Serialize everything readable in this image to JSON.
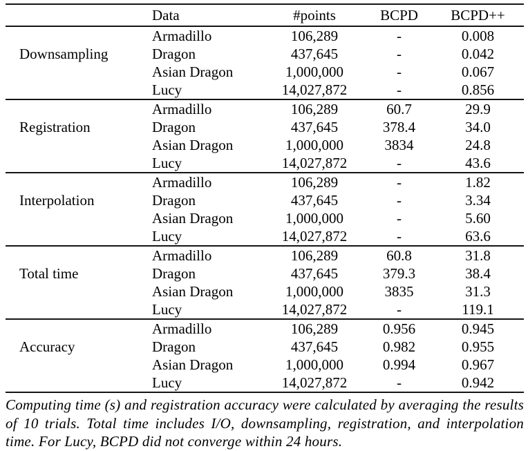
{
  "table": {
    "headers": {
      "group": "",
      "data": "Data",
      "points": "#points",
      "bcpd": "BCPD",
      "bcpdpp": "BCPD++"
    },
    "sections": [
      {
        "label": "Downsampling",
        "rows": [
          {
            "data": "Armadillo",
            "points": "106,289",
            "bcpd": "-",
            "bcpdpp": "0.008"
          },
          {
            "data": "Dragon",
            "points": "437,645",
            "bcpd": "-",
            "bcpdpp": "0.042"
          },
          {
            "data": "Asian Dragon",
            "points": "1,000,000",
            "bcpd": "-",
            "bcpdpp": "0.067"
          },
          {
            "data": "Lucy",
            "points": "14,027,872",
            "bcpd": "-",
            "bcpdpp": "0.856"
          }
        ]
      },
      {
        "label": "Registration",
        "rows": [
          {
            "data": "Armadillo",
            "points": "106,289",
            "bcpd": "60.7",
            "bcpdpp": "29.9"
          },
          {
            "data": "Dragon",
            "points": "437,645",
            "bcpd": "378.4",
            "bcpdpp": "34.0"
          },
          {
            "data": "Asian Dragon",
            "points": "1,000,000",
            "bcpd": "3834",
            "bcpdpp": "24.8"
          },
          {
            "data": "Lucy",
            "points": "14,027,872",
            "bcpd": "-",
            "bcpdpp": "43.6"
          }
        ]
      },
      {
        "label": "Interpolation",
        "rows": [
          {
            "data": "Armadillo",
            "points": "106,289",
            "bcpd": "-",
            "bcpdpp": "1.82"
          },
          {
            "data": "Dragon",
            "points": "437,645",
            "bcpd": "-",
            "bcpdpp": "3.34"
          },
          {
            "data": "Asian Dragon",
            "points": "1,000,000",
            "bcpd": "-",
            "bcpdpp": "5.60"
          },
          {
            "data": "Lucy",
            "points": "14,027,872",
            "bcpd": "-",
            "bcpdpp": "63.6"
          }
        ]
      },
      {
        "label": "Total time",
        "rows": [
          {
            "data": "Armadillo",
            "points": "106,289",
            "bcpd": "60.8",
            "bcpdpp": "31.8"
          },
          {
            "data": "Dragon",
            "points": "437,645",
            "bcpd": "379.3",
            "bcpdpp": "38.4"
          },
          {
            "data": "Asian Dragon",
            "points": "1,000,000",
            "bcpd": "3835",
            "bcpdpp": "31.3"
          },
          {
            "data": "Lucy",
            "points": "14,027,872",
            "bcpd": "-",
            "bcpdpp": "119.1"
          }
        ]
      },
      {
        "label": "Accuracy",
        "rows": [
          {
            "data": "Armadillo",
            "points": "106,289",
            "bcpd": "0.956",
            "bcpdpp": "0.945"
          },
          {
            "data": "Dragon",
            "points": "437,645",
            "bcpd": "0.982",
            "bcpdpp": "0.955"
          },
          {
            "data": "Asian Dragon",
            "points": "1,000,000",
            "bcpd": "0.994",
            "bcpdpp": "0.967"
          },
          {
            "data": "Lucy",
            "points": "14,027,872",
            "bcpd": "-",
            "bcpdpp": "0.942"
          }
        ]
      }
    ]
  },
  "caption": "Computing time (s) and registration accuracy were calculated by averaging the results of 10 trials. Total time includes I/O, downsampling, registration, and interpolation time. For Lucy, BCPD did not converge within 24 hours."
}
